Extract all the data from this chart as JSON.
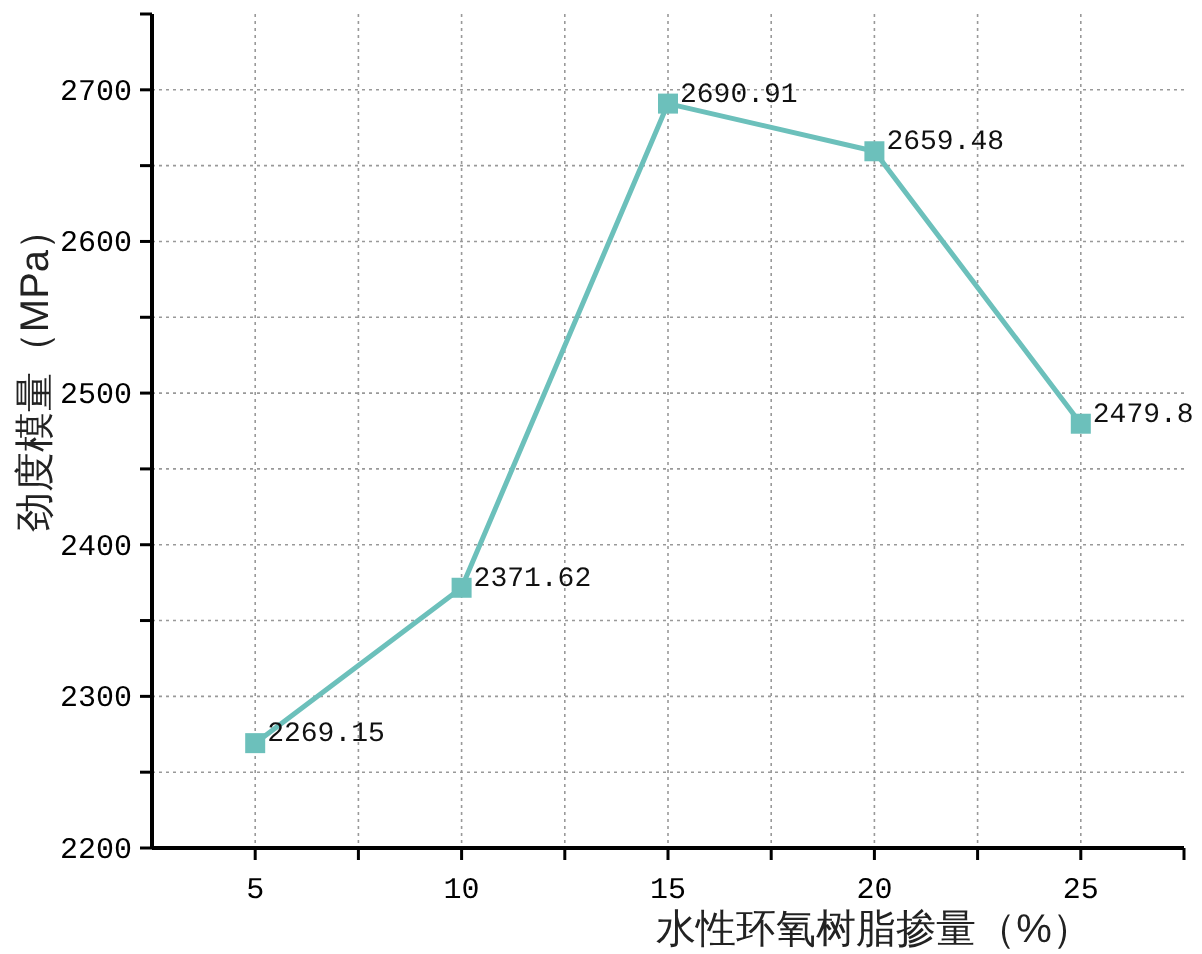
{
  "chart_data": {
    "type": "line",
    "xlabel": "水性环氧树脂掺量（%）",
    "ylabel": "劲度模量（MPa）",
    "x": [
      5,
      10,
      15,
      20,
      25
    ],
    "series": [
      {
        "color": "#6cc0bb",
        "values": [
          2269.15,
          2371.62,
          2690.91,
          2659.48,
          2479.8
        ]
      }
    ],
    "xlim": [
      2.5,
      27.5
    ],
    "xticks": [
      5,
      {
        "value": 7.5,
        "label": null
      },
      10,
      {
        "value": 12.5,
        "label": null
      },
      15,
      {
        "value": 17.5,
        "label": null
      },
      20,
      {
        "value": 22.5,
        "label": null
      },
      25
    ],
    "ylim": [
      2200,
      2750
    ],
    "yticks": [
      2200,
      {
        "value": 2250,
        "label": null
      },
      2300,
      {
        "value": 2350,
        "label": null
      },
      2400,
      {
        "value": 2450,
        "label": null
      },
      2500,
      {
        "value": 2550,
        "label": null
      },
      2600,
      {
        "value": 2650,
        "label": null
      },
      2700
    ],
    "grid": true,
    "marker": "square",
    "data_labels": true
  }
}
